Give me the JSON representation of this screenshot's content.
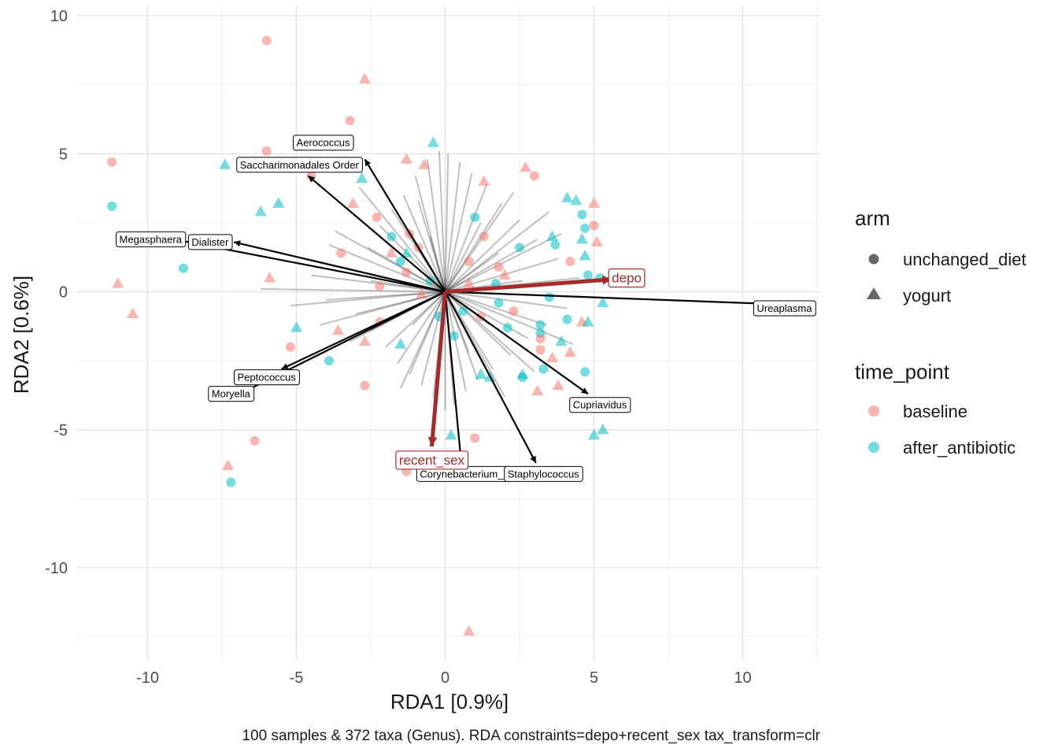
{
  "chart_data": {
    "type": "scatter",
    "xlabel": "RDA1 [0.9%]",
    "ylabel": "RDA2 [0.6%]",
    "caption": "100 samples & 372 taxa (Genus). RDA constraints=depo+recent_sex tax_transform=clr",
    "xlim": [
      -12.5,
      12.5
    ],
    "ylim": [
      -13,
      10.3
    ],
    "x_ticks": [
      -10,
      -5,
      0,
      5,
      10
    ],
    "y_ticks": [
      -10,
      -5,
      0,
      5,
      10
    ],
    "x_tick_labels": [
      "-10",
      "-5",
      "0",
      "5",
      "10"
    ],
    "y_tick_labels": [
      "-10",
      "-5",
      "0",
      "5",
      "10"
    ],
    "grid": true,
    "legend_position": "right",
    "legends": {
      "arm": {
        "title": "arm",
        "entries": [
          {
            "label": "unchanged_diet",
            "shape": "circle"
          },
          {
            "label": "yogurt",
            "shape": "triangle"
          }
        ]
      },
      "time_point": {
        "title": "time_point",
        "entries": [
          {
            "label": "baseline",
            "color": "#F8766D"
          },
          {
            "label": "after_antibiotic",
            "color": "#00BFC4"
          }
        ]
      }
    },
    "colors": {
      "baseline": "#F8766D",
      "after_antibiotic": "#00BFC4",
      "constraint": "#A52A2A"
    },
    "points": [
      {
        "x": -6.0,
        "y": 9.1,
        "time_point": "baseline",
        "arm": "unchanged_diet"
      },
      {
        "x": -2.7,
        "y": 7.7,
        "time_point": "baseline",
        "arm": "yogurt"
      },
      {
        "x": -3.2,
        "y": 6.2,
        "time_point": "baseline",
        "arm": "unchanged_diet"
      },
      {
        "x": -6.0,
        "y": 5.1,
        "time_point": "baseline",
        "arm": "unchanged_diet"
      },
      {
        "x": -11.2,
        "y": 4.7,
        "time_point": "baseline",
        "arm": "unchanged_diet"
      },
      {
        "x": -7.4,
        "y": 4.6,
        "time_point": "after_antibiotic",
        "arm": "yogurt"
      },
      {
        "x": -11.2,
        "y": 3.1,
        "time_point": "after_antibiotic",
        "arm": "unchanged_diet"
      },
      {
        "x": -5.6,
        "y": 3.2,
        "time_point": "after_antibiotic",
        "arm": "yogurt"
      },
      {
        "x": -6.2,
        "y": 2.9,
        "time_point": "after_antibiotic",
        "arm": "yogurt"
      },
      {
        "x": -4.5,
        "y": 4.2,
        "time_point": "baseline",
        "arm": "unchanged_diet"
      },
      {
        "x": -2.8,
        "y": 4.1,
        "time_point": "after_antibiotic",
        "arm": "yogurt"
      },
      {
        "x": -3.1,
        "y": 3.2,
        "time_point": "baseline",
        "arm": "yogurt"
      },
      {
        "x": -1.3,
        "y": 4.8,
        "time_point": "baseline",
        "arm": "yogurt"
      },
      {
        "x": -0.7,
        "y": 4.6,
        "time_point": "baseline",
        "arm": "yogurt"
      },
      {
        "x": -0.4,
        "y": 5.4,
        "time_point": "after_antibiotic",
        "arm": "yogurt"
      },
      {
        "x": -3.5,
        "y": 1.4,
        "time_point": "baseline",
        "arm": "unchanged_diet"
      },
      {
        "x": -1.8,
        "y": 1.4,
        "time_point": "baseline",
        "arm": "yogurt"
      },
      {
        "x": -1.8,
        "y": 2.0,
        "time_point": "after_antibiotic",
        "arm": "unchanged_diet"
      },
      {
        "x": -1.2,
        "y": 2.1,
        "time_point": "baseline",
        "arm": "unchanged_diet"
      },
      {
        "x": -1.3,
        "y": 1.4,
        "time_point": "after_antibiotic",
        "arm": "yogurt"
      },
      {
        "x": -1.5,
        "y": 1.1,
        "time_point": "after_antibiotic",
        "arm": "unchanged_diet"
      },
      {
        "x": -1.3,
        "y": 0.7,
        "time_point": "baseline",
        "arm": "unchanged_diet"
      },
      {
        "x": -2.2,
        "y": 0.2,
        "time_point": "baseline",
        "arm": "unchanged_diet"
      },
      {
        "x": -8.8,
        "y": 0.85,
        "time_point": "after_antibiotic",
        "arm": "unchanged_diet"
      },
      {
        "x": -11.0,
        "y": 0.3,
        "time_point": "baseline",
        "arm": "yogurt"
      },
      {
        "x": -10.5,
        "y": -0.8,
        "time_point": "baseline",
        "arm": "yogurt"
      },
      {
        "x": -5.9,
        "y": 0.5,
        "time_point": "baseline",
        "arm": "yogurt"
      },
      {
        "x": -5.0,
        "y": -1.3,
        "time_point": "after_antibiotic",
        "arm": "yogurt"
      },
      {
        "x": -3.6,
        "y": -1.4,
        "time_point": "baseline",
        "arm": "yogurt"
      },
      {
        "x": -2.2,
        "y": -1.1,
        "time_point": "baseline",
        "arm": "unchanged_diet"
      },
      {
        "x": -2.7,
        "y": -1.8,
        "time_point": "baseline",
        "arm": "yogurt"
      },
      {
        "x": -5.2,
        "y": -2.0,
        "time_point": "baseline",
        "arm": "unchanged_diet"
      },
      {
        "x": -3.9,
        "y": -2.5,
        "time_point": "after_antibiotic",
        "arm": "unchanged_diet"
      },
      {
        "x": -2.7,
        "y": -3.4,
        "time_point": "baseline",
        "arm": "unchanged_diet"
      },
      {
        "x": -7.3,
        "y": -6.3,
        "time_point": "baseline",
        "arm": "yogurt"
      },
      {
        "x": -6.4,
        "y": -5.4,
        "time_point": "baseline",
        "arm": "unchanged_diet"
      },
      {
        "x": -7.2,
        "y": -6.9,
        "time_point": "after_antibiotic",
        "arm": "unchanged_diet"
      },
      {
        "x": 0.2,
        "y": -5.2,
        "time_point": "after_antibiotic",
        "arm": "yogurt"
      },
      {
        "x": 1.0,
        "y": -5.3,
        "time_point": "baseline",
        "arm": "unchanged_diet"
      },
      {
        "x": -1.3,
        "y": -6.5,
        "time_point": "baseline",
        "arm": "unchanged_diet"
      },
      {
        "x": 0.8,
        "y": -12.3,
        "time_point": "baseline",
        "arm": "yogurt"
      },
      {
        "x": 1.3,
        "y": 4.0,
        "time_point": "baseline",
        "arm": "yogurt"
      },
      {
        "x": 2.7,
        "y": 4.5,
        "time_point": "baseline",
        "arm": "yogurt"
      },
      {
        "x": 3.0,
        "y": 4.2,
        "time_point": "baseline",
        "arm": "unchanged_diet"
      },
      {
        "x": 4.1,
        "y": 3.4,
        "time_point": "after_antibiotic",
        "arm": "yogurt"
      },
      {
        "x": 4.4,
        "y": 3.3,
        "time_point": "after_antibiotic",
        "arm": "yogurt"
      },
      {
        "x": 5.0,
        "y": 3.2,
        "time_point": "baseline",
        "arm": "yogurt"
      },
      {
        "x": 4.6,
        "y": 2.8,
        "time_point": "after_antibiotic",
        "arm": "unchanged_diet"
      },
      {
        "x": 5.0,
        "y": 2.4,
        "time_point": "baseline",
        "arm": "unchanged_diet"
      },
      {
        "x": 4.7,
        "y": 2.3,
        "time_point": "after_antibiotic",
        "arm": "unchanged_diet"
      },
      {
        "x": 3.6,
        "y": 2.0,
        "time_point": "after_antibiotic",
        "arm": "yogurt"
      },
      {
        "x": 3.7,
        "y": 1.7,
        "time_point": "after_antibiotic",
        "arm": "unchanged_diet"
      },
      {
        "x": 4.6,
        "y": 1.9,
        "time_point": "after_antibiotic",
        "arm": "yogurt"
      },
      {
        "x": 5.1,
        "y": 1.8,
        "time_point": "baseline",
        "arm": "yogurt"
      },
      {
        "x": 4.7,
        "y": 1.3,
        "time_point": "after_antibiotic",
        "arm": "yogurt"
      },
      {
        "x": 4.2,
        "y": 1.1,
        "time_point": "baseline",
        "arm": "unchanged_diet"
      },
      {
        "x": 1.3,
        "y": 2.0,
        "time_point": "baseline",
        "arm": "unchanged_diet"
      },
      {
        "x": 0.8,
        "y": 1.1,
        "time_point": "baseline",
        "arm": "unchanged_diet"
      },
      {
        "x": 1.8,
        "y": 0.9,
        "time_point": "baseline",
        "arm": "unchanged_diet"
      },
      {
        "x": 2.0,
        "y": 0.6,
        "time_point": "baseline",
        "arm": "yogurt"
      },
      {
        "x": 4.8,
        "y": 0.6,
        "time_point": "after_antibiotic",
        "arm": "unchanged_diet"
      },
      {
        "x": 5.2,
        "y": 0.5,
        "time_point": "after_antibiotic",
        "arm": "unchanged_diet"
      },
      {
        "x": 3.5,
        "y": -0.2,
        "time_point": "after_antibiotic",
        "arm": "unchanged_diet"
      },
      {
        "x": 1.8,
        "y": -0.4,
        "time_point": "after_antibiotic",
        "arm": "unchanged_diet"
      },
      {
        "x": 5.3,
        "y": -0.4,
        "time_point": "after_antibiotic",
        "arm": "yogurt"
      },
      {
        "x": 4.1,
        "y": -1.0,
        "time_point": "after_antibiotic",
        "arm": "unchanged_diet"
      },
      {
        "x": 4.6,
        "y": -1.1,
        "time_point": "baseline",
        "arm": "yogurt"
      },
      {
        "x": 4.8,
        "y": -1.1,
        "time_point": "after_antibiotic",
        "arm": "yogurt"
      },
      {
        "x": 3.2,
        "y": -1.2,
        "time_point": "after_antibiotic",
        "arm": "unchanged_diet"
      },
      {
        "x": 3.2,
        "y": -1.5,
        "time_point": "after_antibiotic",
        "arm": "unchanged_diet"
      },
      {
        "x": 3.2,
        "y": -1.7,
        "time_point": "baseline",
        "arm": "unchanged_diet"
      },
      {
        "x": 3.9,
        "y": -1.8,
        "time_point": "after_antibiotic",
        "arm": "yogurt"
      },
      {
        "x": 3.2,
        "y": -2.1,
        "time_point": "baseline",
        "arm": "unchanged_diet"
      },
      {
        "x": 3.6,
        "y": -2.4,
        "time_point": "baseline",
        "arm": "yogurt"
      },
      {
        "x": 4.2,
        "y": -2.2,
        "time_point": "baseline",
        "arm": "yogurt"
      },
      {
        "x": 3.3,
        "y": -2.8,
        "time_point": "after_antibiotic",
        "arm": "unchanged_diet"
      },
      {
        "x": 4.7,
        "y": -2.9,
        "time_point": "after_antibiotic",
        "arm": "unchanged_diet"
      },
      {
        "x": 2.6,
        "y": -3.0,
        "time_point": "after_antibiotic",
        "arm": "yogurt"
      },
      {
        "x": 2.6,
        "y": -3.1,
        "time_point": "after_antibiotic",
        "arm": "unchanged_diet"
      },
      {
        "x": 1.2,
        "y": -3.0,
        "time_point": "after_antibiotic",
        "arm": "yogurt"
      },
      {
        "x": 1.5,
        "y": -3.1,
        "time_point": "after_antibiotic",
        "arm": "yogurt"
      },
      {
        "x": 3.8,
        "y": -3.4,
        "time_point": "baseline",
        "arm": "yogurt"
      },
      {
        "x": 3.1,
        "y": -3.6,
        "time_point": "baseline",
        "arm": "yogurt"
      },
      {
        "x": 5.3,
        "y": -5.0,
        "time_point": "after_antibiotic",
        "arm": "yogurt"
      },
      {
        "x": 5.0,
        "y": -5.2,
        "time_point": "after_antibiotic",
        "arm": "yogurt"
      },
      {
        "x": 0.6,
        "y": -0.7,
        "time_point": "after_antibiotic",
        "arm": "unchanged_diet"
      },
      {
        "x": 1.2,
        "y": -0.9,
        "time_point": "baseline",
        "arm": "unchanged_diet"
      },
      {
        "x": -0.2,
        "y": -0.9,
        "time_point": "after_antibiotic",
        "arm": "unchanged_diet"
      },
      {
        "x": 0.3,
        "y": -1.6,
        "time_point": "after_antibiotic",
        "arm": "unchanged_diet"
      },
      {
        "x": 0.8,
        "y": 0.3,
        "time_point": "baseline",
        "arm": "yogurt"
      },
      {
        "x": -0.9,
        "y": 1.6,
        "time_point": "baseline",
        "arm": "unchanged_diet"
      },
      {
        "x": -0.5,
        "y": 0.4,
        "time_point": "after_antibiotic",
        "arm": "unchanged_diet"
      },
      {
        "x": 1.7,
        "y": 0.3,
        "time_point": "after_antibiotic",
        "arm": "unchanged_diet"
      },
      {
        "x": 2.3,
        "y": -0.7,
        "time_point": "baseline",
        "arm": "unchanged_diet"
      },
      {
        "x": -1.5,
        "y": -1.9,
        "time_point": "after_antibiotic",
        "arm": "yogurt"
      },
      {
        "x": 2.5,
        "y": 1.6,
        "time_point": "after_antibiotic",
        "arm": "unchanged_diet"
      },
      {
        "x": -2.3,
        "y": 2.7,
        "time_point": "baseline",
        "arm": "unchanged_diet"
      },
      {
        "x": 2.1,
        "y": -1.3,
        "time_point": "after_antibiotic",
        "arm": "unchanged_diet"
      },
      {
        "x": -0.8,
        "y": -0.1,
        "time_point": "baseline",
        "arm": "yogurt"
      },
      {
        "x": 1.0,
        "y": 2.7,
        "time_point": "after_antibiotic",
        "arm": "unchanged_diet"
      }
    ],
    "loading_lines": [
      [
        -6.2,
        0.1
      ],
      [
        -4.5,
        0.6
      ],
      [
        -4.0,
        -0.3
      ],
      [
        -3.5,
        0.9
      ],
      [
        -3.0,
        -0.8
      ],
      [
        -2.6,
        1.6
      ],
      [
        -2.5,
        -1.4
      ],
      [
        -2.2,
        2.4
      ],
      [
        -2.0,
        -2.0
      ],
      [
        -1.8,
        3.0
      ],
      [
        -1.6,
        -2.6
      ],
      [
        -1.4,
        3.5
      ],
      [
        -1.2,
        -3.0
      ],
      [
        -1.0,
        4.2
      ],
      [
        -0.8,
        -3.4
      ],
      [
        -0.6,
        4.8
      ],
      [
        -0.4,
        -3.8
      ],
      [
        -0.2,
        5.1
      ],
      [
        0.1,
        5.0
      ],
      [
        0.3,
        -4.1
      ],
      [
        0.5,
        4.7
      ],
      [
        0.7,
        -3.6
      ],
      [
        0.9,
        4.3
      ],
      [
        1.1,
        -3.2
      ],
      [
        1.4,
        3.9
      ],
      [
        1.6,
        -2.8
      ],
      [
        1.9,
        3.2
      ],
      [
        2.2,
        -2.3
      ],
      [
        2.5,
        2.6
      ],
      [
        2.8,
        -1.7
      ],
      [
        3.1,
        1.9
      ],
      [
        3.4,
        -1.2
      ],
      [
        3.8,
        1.2
      ],
      [
        4.1,
        -0.6
      ],
      [
        4.5,
        0.5
      ],
      [
        -2.9,
        3.8
      ],
      [
        -3.7,
        2.2
      ],
      [
        -4.8,
        1.2
      ],
      [
        -3.2,
        -1.8
      ],
      [
        -4.2,
        -1.2
      ],
      [
        2.3,
        3.6
      ],
      [
        3.5,
        2.9
      ],
      [
        1.2,
        2.5
      ],
      [
        -1.2,
        2.2
      ],
      [
        2.0,
        -3.8
      ],
      [
        -1.5,
        -3.5
      ],
      [
        0.8,
        -2.2
      ],
      [
        -0.5,
        2.0
      ],
      [
        3.0,
        -2.9
      ],
      [
        4.3,
        -1.9
      ],
      [
        -5.2,
        -0.5
      ],
      [
        -2.5,
        0.4
      ],
      [
        2.6,
        0.4
      ],
      [
        1.5,
        -1.2
      ],
      [
        -1.1,
        -1.2
      ],
      [
        3.9,
        2.1
      ],
      [
        -3.9,
        1.7
      ],
      [
        0.0,
        -4.3
      ],
      [
        -0.9,
        3.3
      ],
      [
        1.8,
        1.4
      ]
    ],
    "taxa": [
      {
        "name": "Aerococcus",
        "x": -2.7,
        "y": 4.8
      },
      {
        "name": "Saccharimonadales Order",
        "x": -4.6,
        "y": 4.2
      },
      {
        "name": "Megasphaera",
        "x": -9.1,
        "y": 1.9
      },
      {
        "name": "Dialister",
        "x": -7.1,
        "y": 1.8
      },
      {
        "name": "Ureaplasma",
        "x": 12.4,
        "y": -0.5
      },
      {
        "name": "Peptococcus",
        "x": -5.5,
        "y": -2.8
      },
      {
        "name": "Moryella",
        "x": -6.9,
        "y": -3.7
      },
      {
        "name": "Cupriavidus",
        "x": 4.8,
        "y": -3.7
      },
      {
        "name": "Corynebacterium_1",
        "x": 0.55,
        "y": -6.3
      },
      {
        "name": "Staphylococcus",
        "x": 3.05,
        "y": -6.2
      }
    ],
    "taxa_labels": [
      {
        "name": "Aerococcus",
        "x": -4.1,
        "y": 5.4
      },
      {
        "name": "Saccharimonadales Order",
        "x": -4.9,
        "y": 4.6
      },
      {
        "name": "Megasphaera",
        "x": -9.9,
        "y": 1.9
      },
      {
        "name": "Dialister",
        "x": -7.9,
        "y": 1.8
      },
      {
        "name": "Ureaplasma",
        "x": 11.4,
        "y": -0.6
      },
      {
        "name": "Peptococcus",
        "x": -6.0,
        "y": -3.1
      },
      {
        "name": "Moryella",
        "x": -7.2,
        "y": -3.7
      },
      {
        "name": "Cupriavidus",
        "x": 5.2,
        "y": -4.1
      },
      {
        "name": "Corynebacterium_1",
        "x": 0.65,
        "y": -6.6
      },
      {
        "name": "Staphylococcus",
        "x": 3.3,
        "y": -6.6
      }
    ],
    "constraints": [
      {
        "name": "depo",
        "x": 5.6,
        "y": 0.45,
        "label_x": 6.1,
        "label_y": 0.5
      },
      {
        "name": "recent_sex",
        "x": -0.45,
        "y": -5.6,
        "label_x": -0.45,
        "label_y": -6.1
      }
    ]
  }
}
